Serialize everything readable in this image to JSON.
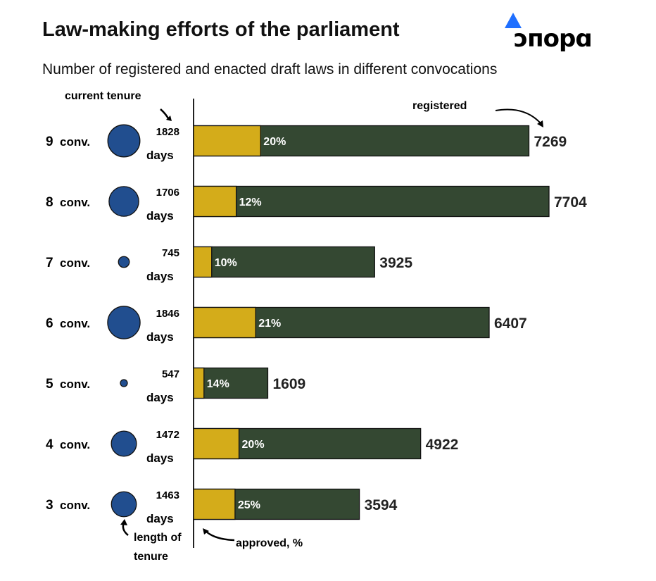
{
  "title": "Law-making efforts of the parliament",
  "subtitle": "Number of registered and enacted draft laws in different convocations",
  "logo_text": "опора",
  "annotations": {
    "current_tenure": "current tenure",
    "registered": "registered",
    "length_of_tenure_1": "length of",
    "length_of_tenure_2": "tenure",
    "approved": "approved, %"
  },
  "colors": {
    "approved": "#d4ac1a",
    "registered": "#344832",
    "circle": "#214e8f",
    "logo_blue": "#1f6fff"
  },
  "chart_data": {
    "type": "bar",
    "title": "Law-making efforts of the parliament",
    "categories": [
      "9 conv.",
      "8 conv.",
      "7 conv.",
      "6 conv.",
      "5 conv.",
      "4 conv.",
      "3 conv."
    ],
    "days": [
      1828,
      1706,
      745,
      1846,
      547,
      1472,
      1463
    ],
    "days_unit": "days",
    "registered": [
      7269,
      7704,
      3925,
      6407,
      1609,
      4922,
      3594
    ],
    "approved_pct": [
      20,
      12,
      10,
      21,
      14,
      20,
      25
    ],
    "xlim": [
      0,
      7704
    ]
  }
}
